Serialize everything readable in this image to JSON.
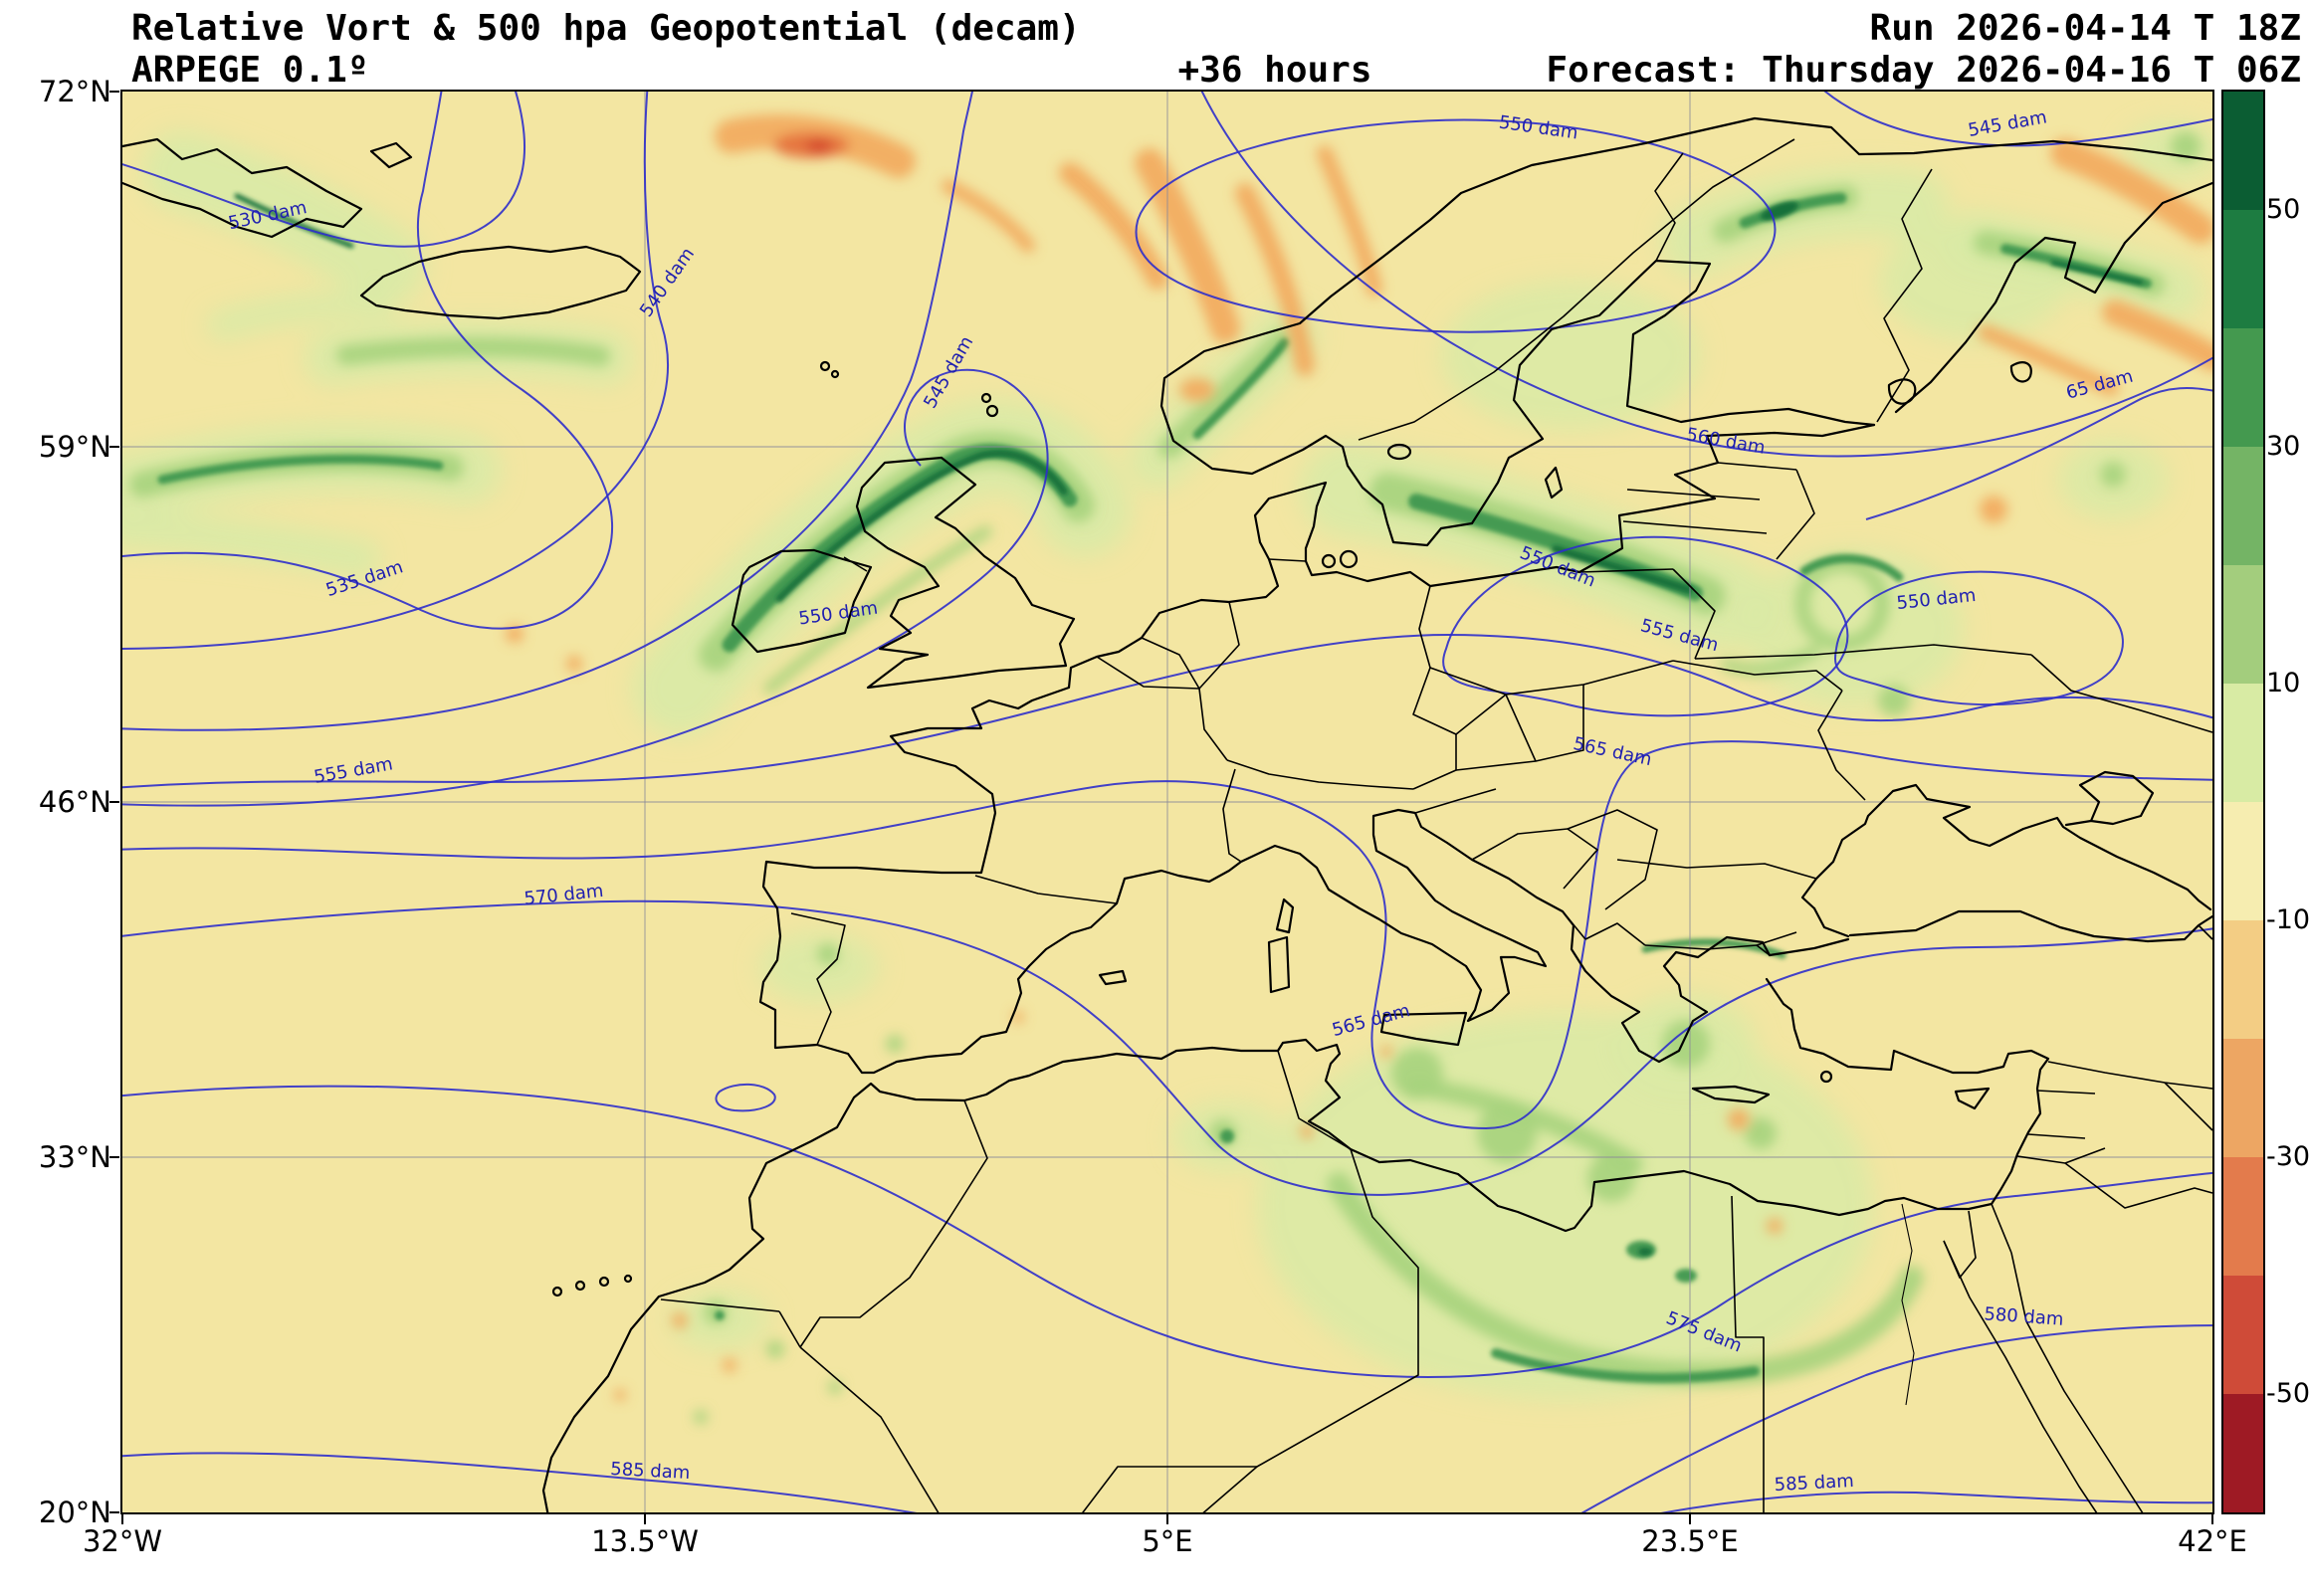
{
  "header": {
    "title": "Relative Vort & 500 hpa Geopotential (decam)",
    "model": "ARPEGE 0.1º",
    "lead": "+36 hours",
    "run": "Run 2026-04-14 T 18Z",
    "valid": "Forecast: Thursday 2026-04-16 T 06Z"
  },
  "axes": {
    "lat_ticks": [
      "72°N",
      "59°N",
      "46°N",
      "33°N",
      "20°N"
    ],
    "lon_ticks": [
      "32°W",
      "13.5°W",
      "5°E",
      "23.5°E",
      "42°E"
    ]
  },
  "colorbar": {
    "tick_labels": [
      "50",
      "30",
      "10",
      "-10",
      "-30",
      "-50"
    ],
    "colors": [
      "#0b5d33",
      "#1d7c41",
      "#44994f",
      "#74b465",
      "#a3cd7d",
      "#d8eba4",
      "#f6edb0",
      "#f3cd84",
      "#eda663",
      "#e37b4c",
      "#cf4b38",
      "#9e1a24"
    ]
  },
  "contour_labels": [
    {
      "text": "530 dam"
    },
    {
      "text": "540 dam"
    },
    {
      "text": "545 dam"
    },
    {
      "text": "550 dam"
    },
    {
      "text": "545 dam"
    },
    {
      "text": "65 dam"
    },
    {
      "text": "560 dam"
    },
    {
      "text": "535 dam"
    },
    {
      "text": "550 dam"
    },
    {
      "text": "550 dam"
    },
    {
      "text": "555 dam"
    },
    {
      "text": "550 dam"
    },
    {
      "text": "555 dam"
    },
    {
      "text": "565 dam"
    },
    {
      "text": "570 dam"
    },
    {
      "text": "565 dam"
    },
    {
      "text": "575 dam"
    },
    {
      "text": "580 dam"
    },
    {
      "text": "585 dam"
    },
    {
      "text": "585 dam"
    }
  ],
  "chart_data": {
    "type": "heatmap",
    "title": "Relative Vort & 500 hpa Geopotential (decam)",
    "model": "ARPEGE 0.1º",
    "run": "Run 2026-04-14 T 18Z",
    "valid": "Forecast: Thursday 2026-04-16 T 06Z",
    "lead_hours": 36,
    "shaded_field": "relative vorticity",
    "contour_field": "500 hPa geopotential (dam)",
    "x_ticks": [
      "32°W",
      "13.5°W",
      "5°E",
      "23.5°E",
      "42°E"
    ],
    "y_ticks": [
      "72°N",
      "59°N",
      "46°N",
      "33°N",
      "20°N"
    ],
    "x_range_deg": [
      -32,
      42
    ],
    "y_range_deg": [
      20,
      72
    ],
    "grid": true,
    "legend_position": "right-colorbar",
    "colorbar_ticks": [
      50,
      30,
      10,
      -10,
      -30,
      -50
    ],
    "colorbar_range": [
      60,
      -60
    ],
    "contour_levels_dam": [
      530,
      535,
      540,
      545,
      550,
      555,
      560,
      565,
      570,
      575,
      580,
      585
    ]
  }
}
